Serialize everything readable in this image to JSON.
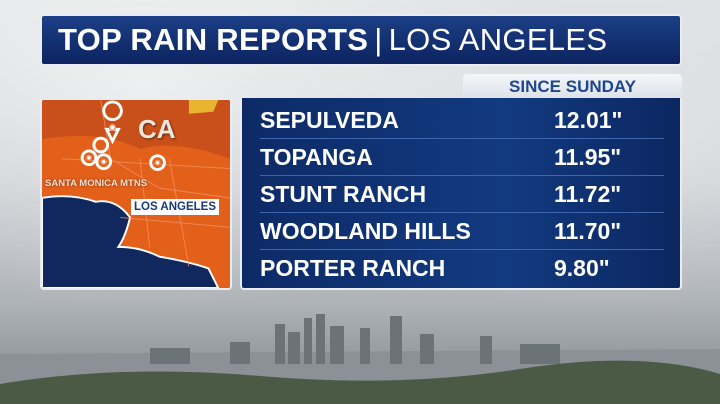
{
  "title": {
    "main": "TOP RAIN REPORTS",
    "separator": "|",
    "location": "LOS ANGELES"
  },
  "period_label": "SINCE SUNDAY",
  "reports": [
    {
      "place": "SEPULVEDA",
      "amount": "12.01\""
    },
    {
      "place": "TOPANGA",
      "amount": "11.95\""
    },
    {
      "place": "STUNT RANCH",
      "amount": "11.72\""
    },
    {
      "place": "WOODLAND HILLS",
      "amount": "11.70\""
    },
    {
      "place": "PORTER RANCH",
      "amount": "9.80\""
    }
  ],
  "map": {
    "state_label": "CA",
    "region_label": "SANTA MONICA MTNS",
    "city_label": "LOS ANGELES",
    "pin_icon": "map-pin-icon",
    "land_color": "#e2601a",
    "ocean_color": "#10285e"
  },
  "colors": {
    "panel": "#0d2a66",
    "accent_text": "#1d4590"
  }
}
